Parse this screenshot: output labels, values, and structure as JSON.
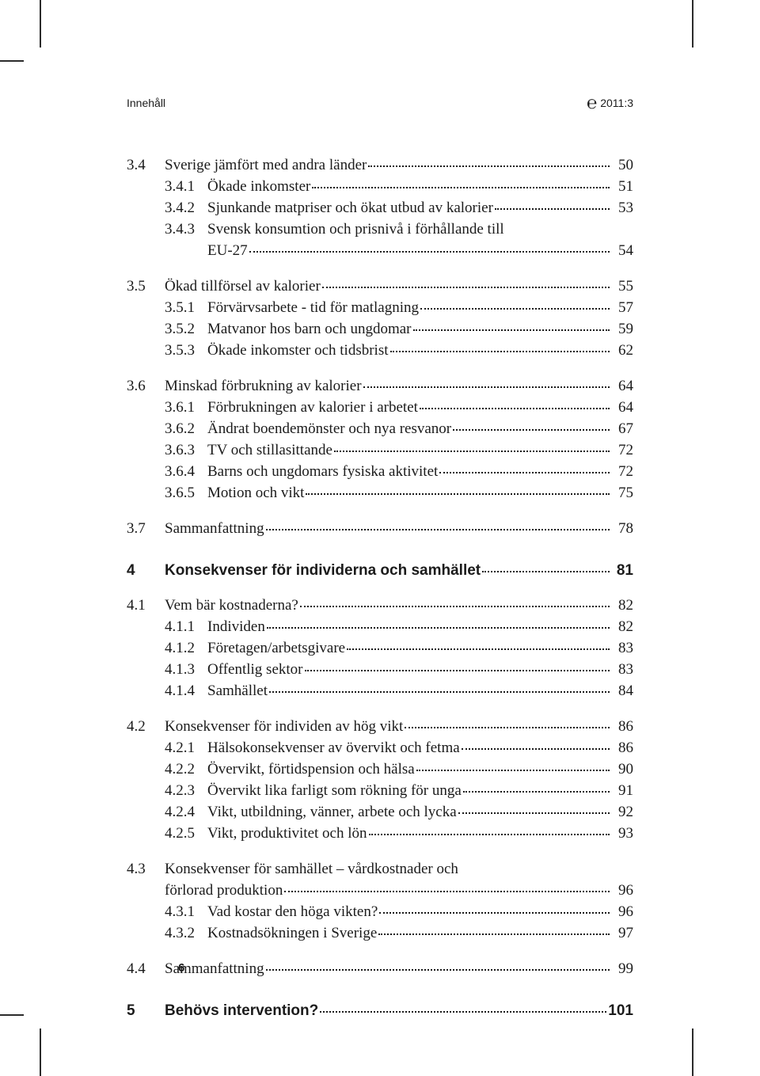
{
  "header": {
    "left": "Innehåll",
    "right_year": "2011:3"
  },
  "page_number": "6",
  "toc": [
    {
      "type": "section",
      "num": "3.4",
      "title": "Sverige jämfört med andra länder",
      "page": "50",
      "subs": [
        {
          "num": "3.4.1",
          "title": "Ökade inkomster",
          "page": "51"
        },
        {
          "num": "3.4.2",
          "title": "Sjunkande matpriser och ökat utbud av kalorier",
          "page": "53"
        },
        {
          "num": "3.4.3",
          "title_a": "Svensk konsumtion och prisnivå i förhållande till",
          "title_b": "EU-27",
          "page": "54"
        }
      ]
    },
    {
      "type": "section",
      "num": "3.5",
      "title": "Ökad tillförsel av kalorier",
      "page": "55",
      "subs": [
        {
          "num": "3.5.1",
          "title": "Förvärvsarbete - tid för matlagning",
          "page": "57"
        },
        {
          "num": "3.5.2",
          "title": "Matvanor hos barn och ungdomar",
          "page": "59"
        },
        {
          "num": "3.5.3",
          "title": "Ökade inkomster och tidsbrist",
          "page": "62"
        }
      ]
    },
    {
      "type": "section",
      "num": "3.6",
      "title": "Minskad förbrukning av kalorier",
      "page": "64",
      "subs": [
        {
          "num": "3.6.1",
          "title": "Förbrukningen av kalorier i arbetet",
          "page": "64"
        },
        {
          "num": "3.6.2",
          "title": "Ändrat boendemönster och nya resvanor",
          "page": "67"
        },
        {
          "num": "3.6.3",
          "title": "TV och stillasittande",
          "page": "72"
        },
        {
          "num": "3.6.4",
          "title": "Barns och ungdomars fysiska aktivitet",
          "page": "72"
        },
        {
          "num": "3.6.5",
          "title": "Motion och vikt",
          "page": "75"
        }
      ]
    },
    {
      "type": "section",
      "num": "3.7",
      "title": "Sammanfattning",
      "page": "78",
      "subs": []
    },
    {
      "type": "chapter",
      "num": "4",
      "title": "Konsekvenser för individerna och samhället",
      "page": "81"
    },
    {
      "type": "section",
      "num": "4.1",
      "title": "Vem bär kostnaderna?",
      "page": "82",
      "subs": [
        {
          "num": "4.1.1",
          "title": "Individen",
          "page": "82"
        },
        {
          "num": "4.1.2",
          "title": "Företagen/arbetsgivare",
          "page": "83"
        },
        {
          "num": "4.1.3",
          "title": "Offentlig sektor",
          "page": "83"
        },
        {
          "num": "4.1.4",
          "title": "Samhället",
          "page": "84"
        }
      ]
    },
    {
      "type": "section",
      "num": "4.2",
      "title": "Konsekvenser för individen av hög vikt",
      "page": "86",
      "subs": [
        {
          "num": "4.2.1",
          "title": "Hälsokonsekvenser av övervikt och fetma",
          "page": "86"
        },
        {
          "num": "4.2.2",
          "title": "Övervikt, förtidspension och hälsa",
          "page": "90"
        },
        {
          "num": "4.2.3",
          "title": "Övervikt lika farligt som rökning för unga",
          "page": "91"
        },
        {
          "num": "4.2.4",
          "title": "Vikt, utbildning, vänner, arbete och lycka",
          "page": "92"
        },
        {
          "num": "4.2.5",
          "title": "Vikt, produktivitet och lön",
          "page": "93"
        }
      ]
    },
    {
      "type": "section",
      "num": "4.3",
      "title_a": "Konsekvenser för samhället – vårdkostnader och",
      "title_b": "förlorad produktion",
      "page": "96",
      "subs": [
        {
          "num": "4.3.1",
          "title": "Vad kostar den höga vikten?",
          "page": "96"
        },
        {
          "num": "4.3.2",
          "title": "Kostnadsökningen i Sverige",
          "page": "97"
        }
      ]
    },
    {
      "type": "section",
      "num": "4.4",
      "title": "Sammanfattning",
      "page": "99",
      "subs": []
    },
    {
      "type": "chapter",
      "num": "5",
      "title": "Behövs intervention?",
      "page": "101"
    }
  ]
}
